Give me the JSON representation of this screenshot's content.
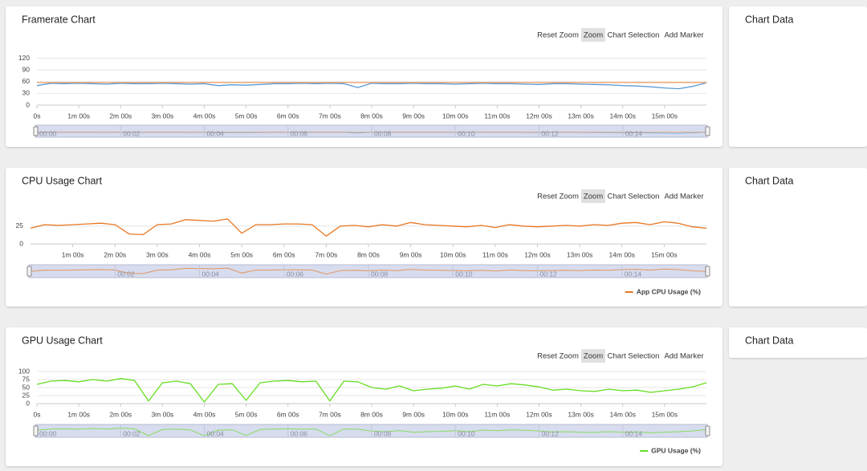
{
  "panels": [
    {
      "title": "Framerate Chart",
      "buttons": [
        "Reset Zoom",
        "Zoom",
        "Chart Selection",
        "Add Marker"
      ],
      "active_button": 1,
      "side_title": "Chart Data",
      "chart_data": {
        "type": "line",
        "x": [
          0,
          20,
          40,
          60,
          80,
          100,
          120,
          140,
          160,
          180,
          200,
          220,
          240,
          260,
          280,
          300,
          320,
          340,
          360,
          380,
          400,
          420,
          440,
          460,
          480,
          500,
          520,
          540,
          560,
          580,
          600,
          620,
          640,
          660,
          680,
          700,
          720,
          740,
          760,
          780,
          800,
          820,
          840,
          860,
          880,
          900,
          920,
          940,
          960
        ],
        "series": [
          {
            "color": "#5b9bd5",
            "values": [
              50,
              56,
              55,
              56,
              55,
              54,
              56,
              55,
              55,
              56,
              55,
              54,
              55,
              50,
              52,
              51,
              53,
              55,
              55,
              56,
              55,
              56,
              55,
              45,
              56,
              55,
              55,
              56,
              55,
              55,
              54,
              55,
              56,
              55,
              55,
              54,
              53,
              55,
              55,
              54,
              53,
              52,
              50,
              49,
              47,
              44,
              42,
              48,
              57
            ]
          },
          {
            "color": "#f2a46b",
            "values": [
              58,
              58,
              58,
              58,
              58,
              58,
              58,
              58,
              58,
              58,
              58,
              58,
              58,
              58,
              58,
              58,
              58,
              58,
              58,
              58,
              58,
              58,
              58,
              58,
              58,
              58,
              58,
              58,
              58,
              58,
              58,
              58,
              58,
              58,
              58,
              58,
              58,
              58,
              58,
              58,
              58,
              58,
              58,
              58,
              58,
              58,
              58,
              58,
              58
            ]
          }
        ],
        "xlim": [
          0,
          960
        ],
        "ylim": [
          0,
          140
        ],
        "xticks": [
          {
            "value": 0,
            "label": "0s"
          },
          {
            "value": 60,
            "label": "1m 00s"
          },
          {
            "value": 120,
            "label": "2m 00s"
          },
          {
            "value": 180,
            "label": "3m 00s"
          },
          {
            "value": 240,
            "label": "4m 00s"
          },
          {
            "value": 300,
            "label": "5m 00s"
          },
          {
            "value": 360,
            "label": "6m 00s"
          },
          {
            "value": 420,
            "label": "7m 00s"
          },
          {
            "value": 480,
            "label": "8m 00s"
          },
          {
            "value": 540,
            "label": "9m 00s"
          },
          {
            "value": 600,
            "label": "10m 00s"
          },
          {
            "value": 660,
            "label": "11m 00s"
          },
          {
            "value": 720,
            "label": "12m 00s"
          },
          {
            "value": 780,
            "label": "13m 00s"
          },
          {
            "value": 840,
            "label": "14m 00s"
          },
          {
            "value": 900,
            "label": "15m 00s"
          }
        ],
        "yticks": [
          0,
          30,
          60,
          90,
          120
        ],
        "navigator_ticks": [
          {
            "value": 0,
            "label": "00:00"
          },
          {
            "value": 120,
            "label": "00:02"
          },
          {
            "value": 240,
            "label": "00:04"
          },
          {
            "value": 360,
            "label": "00:06"
          },
          {
            "value": 480,
            "label": "00:08"
          },
          {
            "value": 600,
            "label": "00:10"
          },
          {
            "value": 720,
            "label": "00:12"
          },
          {
            "value": 840,
            "label": "00:14"
          }
        ],
        "grid": true
      }
    },
    {
      "title": "CPU Usage Chart",
      "buttons": [
        "Reset Zoom",
        "Zoom",
        "Chart Selection",
        "Add Marker"
      ],
      "active_button": 1,
      "side_title": "Chart Data",
      "chart_data": {
        "type": "line",
        "x": [
          0,
          20,
          40,
          60,
          80,
          100,
          120,
          140,
          160,
          180,
          200,
          220,
          240,
          260,
          280,
          300,
          320,
          340,
          360,
          380,
          400,
          420,
          440,
          460,
          480,
          500,
          520,
          540,
          560,
          580,
          600,
          620,
          640,
          660,
          680,
          700,
          720,
          740,
          760,
          780,
          800,
          820,
          840,
          860,
          880,
          900,
          920,
          940,
          960
        ],
        "series": [
          {
            "name": "App CPU Usage (%)",
            "color": "#e87722",
            "values": [
              22,
              27,
              26,
              27,
              28,
              29,
              27,
              14,
              13,
              27,
              28,
              34,
              33,
              32,
              35,
              15,
              27,
              27,
              28,
              28,
              27,
              11,
              25,
              26,
              24,
              27,
              25,
              30,
              27,
              26,
              25,
              24,
              26,
              23,
              27,
              25,
              24,
              25,
              26,
              25,
              27,
              26,
              29,
              30,
              27,
              31,
              29,
              24,
              22
            ]
          }
        ],
        "xlim": [
          0,
          960
        ],
        "ylim": [
          0,
          45
        ],
        "xticks": [
          {
            "value": 60,
            "label": "1m 00s"
          },
          {
            "value": 120,
            "label": "2m 00s"
          },
          {
            "value": 180,
            "label": "3m 00s"
          },
          {
            "value": 240,
            "label": "4m 00s"
          },
          {
            "value": 300,
            "label": "5m 00s"
          },
          {
            "value": 360,
            "label": "6m 00s"
          },
          {
            "value": 420,
            "label": "7m 00s"
          },
          {
            "value": 480,
            "label": "8m 00s"
          },
          {
            "value": 540,
            "label": "9m 00s"
          },
          {
            "value": 600,
            "label": "10m 00s"
          },
          {
            "value": 660,
            "label": "11m 00s"
          },
          {
            "value": 720,
            "label": "12m 00s"
          },
          {
            "value": 780,
            "label": "13m 00s"
          },
          {
            "value": 840,
            "label": "14m 00s"
          },
          {
            "value": 900,
            "label": "15m 00s"
          }
        ],
        "yticks": [
          0,
          25
        ],
        "navigator_ticks": [
          {
            "value": 120,
            "label": "00:02"
          },
          {
            "value": 240,
            "label": "00:04"
          },
          {
            "value": 360,
            "label": "00:06"
          },
          {
            "value": 480,
            "label": "00:08"
          },
          {
            "value": 600,
            "label": "00:10"
          },
          {
            "value": 720,
            "label": "00:12"
          },
          {
            "value": 840,
            "label": "00:14"
          }
        ],
        "grid": true
      }
    },
    {
      "title": "GPU Usage Chart",
      "buttons": [
        "Reset Zoom",
        "Zoom",
        "Chart Selection",
        "Add Marker"
      ],
      "active_button": 1,
      "side_title": "Chart Data",
      "chart_data": {
        "type": "line",
        "x": [
          0,
          20,
          40,
          60,
          80,
          100,
          120,
          140,
          160,
          180,
          200,
          220,
          240,
          260,
          280,
          300,
          320,
          340,
          360,
          380,
          400,
          420,
          440,
          460,
          480,
          500,
          520,
          540,
          560,
          580,
          600,
          620,
          640,
          660,
          680,
          700,
          720,
          740,
          760,
          780,
          800,
          820,
          840,
          860,
          880,
          900,
          920,
          940,
          960
        ],
        "series": [
          {
            "name": "GPU Usage (%)",
            "color": "#66dd22",
            "values": [
              60,
              70,
              72,
              68,
              75,
              70,
              78,
              72,
              8,
              65,
              70,
              62,
              5,
              60,
              62,
              10,
              65,
              70,
              72,
              68,
              70,
              8,
              70,
              68,
              50,
              45,
              55,
              40,
              45,
              48,
              55,
              45,
              60,
              55,
              62,
              58,
              52,
              42,
              45,
              40,
              38,
              45,
              40,
              42,
              35,
              40,
              45,
              52,
              65
            ]
          }
        ],
        "xlim": [
          0,
          960
        ],
        "ylim": [
          0,
          105
        ],
        "xticks": [
          {
            "value": 0,
            "label": "0s"
          },
          {
            "value": 60,
            "label": "1m 00s"
          },
          {
            "value": 120,
            "label": "2m 00s"
          },
          {
            "value": 180,
            "label": "3m 00s"
          },
          {
            "value": 240,
            "label": "4m 00s"
          },
          {
            "value": 300,
            "label": "5m 00s"
          },
          {
            "value": 360,
            "label": "6m 00s"
          },
          {
            "value": 420,
            "label": "7m 00s"
          },
          {
            "value": 480,
            "label": "8m 00s"
          },
          {
            "value": 540,
            "label": "9m 00s"
          },
          {
            "value": 600,
            "label": "10m 00s"
          },
          {
            "value": 660,
            "label": "11m 00s"
          },
          {
            "value": 720,
            "label": "12m 00s"
          },
          {
            "value": 780,
            "label": "13m 00s"
          },
          {
            "value": 840,
            "label": "14m 00s"
          },
          {
            "value": 900,
            "label": "15m 00s"
          }
        ],
        "yticks": [
          0,
          25,
          50,
          75,
          100
        ],
        "navigator_ticks": [
          {
            "value": 0,
            "label": "00:00"
          },
          {
            "value": 120,
            "label": "00:02"
          },
          {
            "value": 240,
            "label": "00:04"
          },
          {
            "value": 360,
            "label": "00:06"
          },
          {
            "value": 480,
            "label": "00:08"
          },
          {
            "value": 600,
            "label": "00:10"
          },
          {
            "value": 720,
            "label": "00:12"
          },
          {
            "value": 840,
            "label": "00:14"
          }
        ],
        "grid": true
      }
    }
  ]
}
